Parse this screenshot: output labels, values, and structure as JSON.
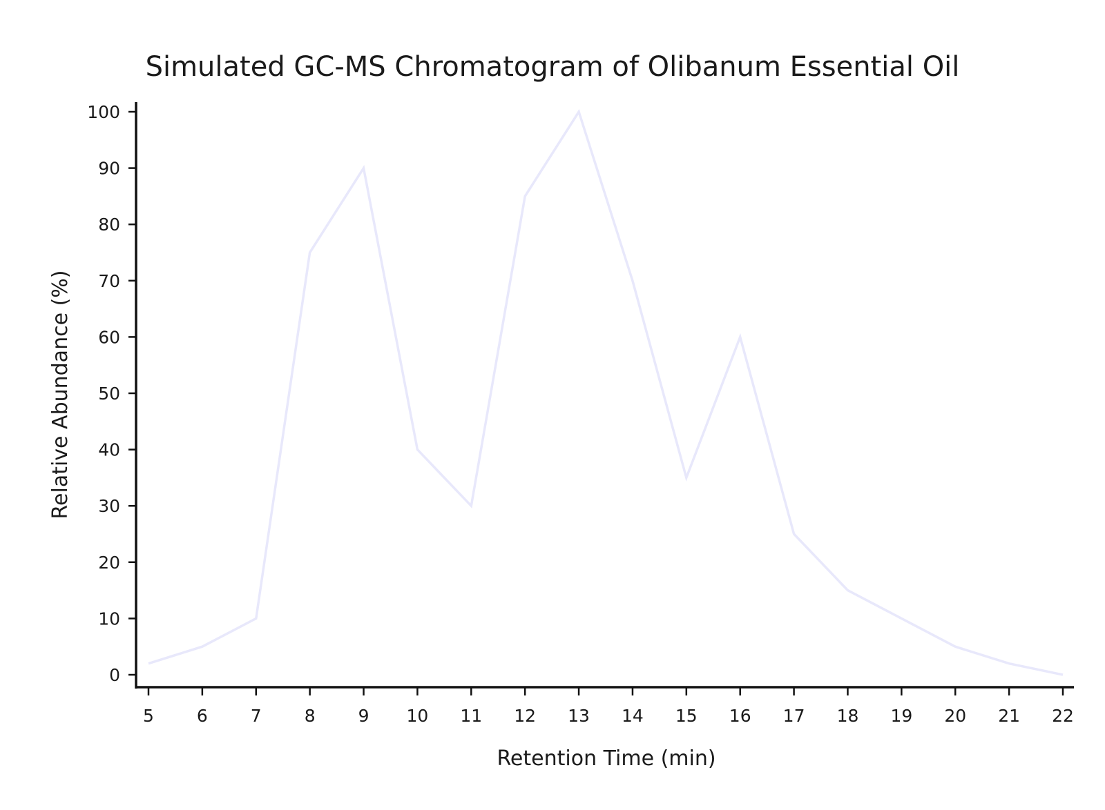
{
  "chart_data": {
    "type": "line",
    "title": "Simulated GC-MS Chromatogram of Olibanum Essential Oil",
    "xlabel": "Retention Time (min)",
    "ylabel": "Relative Abundance (%)",
    "x": [
      5,
      6,
      7,
      8,
      9,
      10,
      11,
      12,
      13,
      14,
      15,
      16,
      17,
      18,
      19,
      20,
      21,
      22
    ],
    "series": [
      {
        "values": [
          2,
          5,
          10,
          75,
          90,
          40,
          30,
          85,
          100,
          70,
          35,
          60,
          25,
          15,
          10,
          5,
          2,
          0
        ],
        "color": "#e8e8fb"
      }
    ],
    "xlim": [
      5,
      22
    ],
    "ylim": [
      0,
      100
    ],
    "xticks": [
      "5",
      "6",
      "7",
      "8",
      "9",
      "10",
      "11",
      "12",
      "13",
      "14",
      "15",
      "16",
      "17",
      "18",
      "19",
      "20",
      "21",
      "22"
    ],
    "yticks": [
      "0",
      "10",
      "20",
      "30",
      "40",
      "50",
      "60",
      "70",
      "80",
      "90",
      "100"
    ],
    "grid": false,
    "legend": "none"
  }
}
